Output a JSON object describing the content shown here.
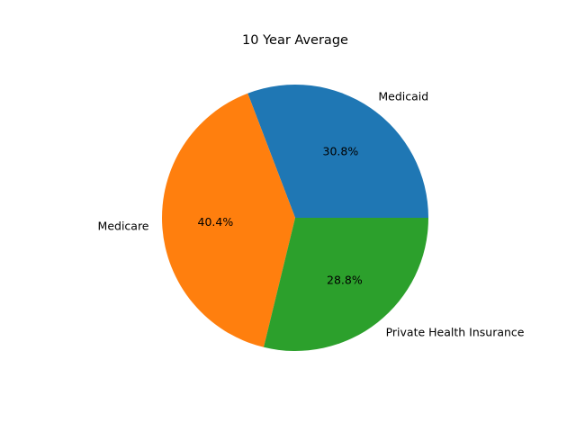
{
  "chart_data": {
    "type": "pie",
    "title": "10 Year Average",
    "categories": [
      "Medicaid",
      "Medicare",
      "Private Health Insurance"
    ],
    "values": [
      30.8,
      40.4,
      28.8
    ],
    "percent_labels": [
      "30.8%",
      "40.4%",
      "28.8%"
    ],
    "colors": [
      "#1f77b4",
      "#ff7f0e",
      "#2ca02c"
    ],
    "start_angle_deg": 0,
    "direction": "counterclockwise",
    "legend": "none"
  }
}
